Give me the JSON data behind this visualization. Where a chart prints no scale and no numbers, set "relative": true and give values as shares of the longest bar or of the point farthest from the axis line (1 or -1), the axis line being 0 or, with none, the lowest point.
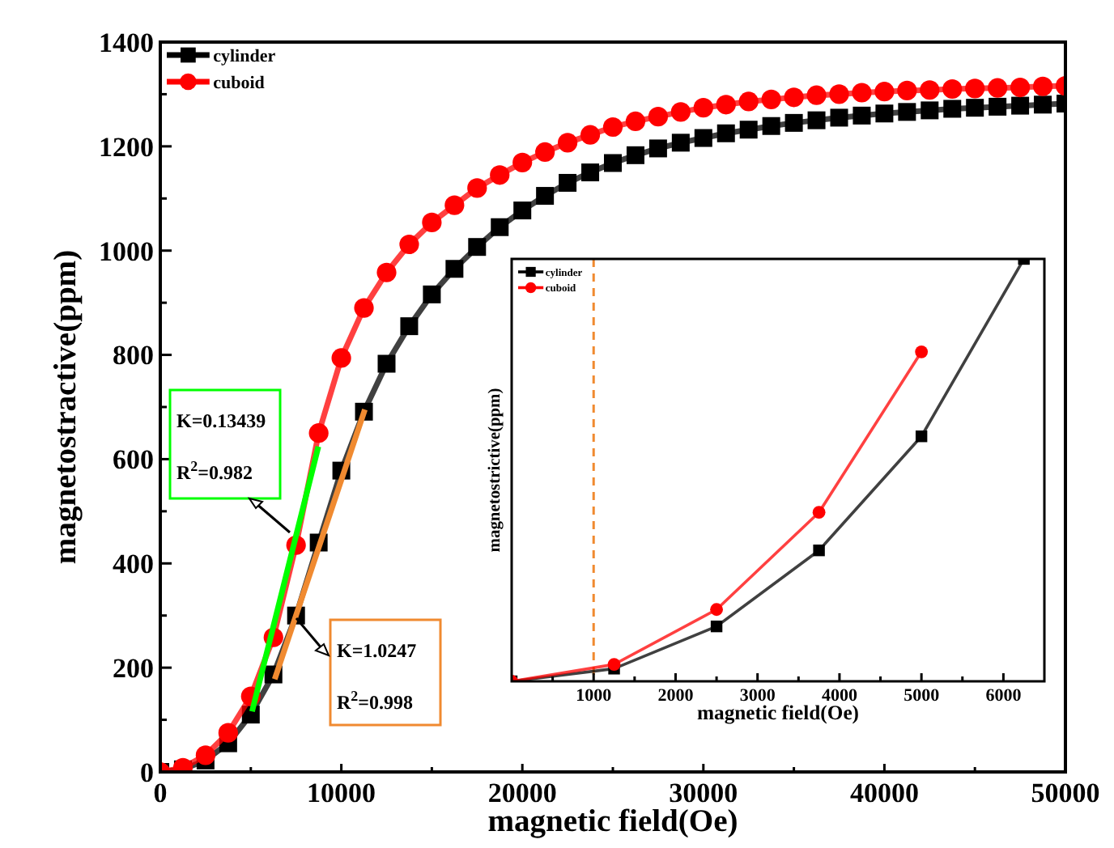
{
  "chart_data": [
    {
      "type": "line",
      "xlabel": "magnetic field(Oe)",
      "ylabel": "magnetostractive(ppm)",
      "x": [
        0,
        1250,
        2500,
        3750,
        5000,
        6250,
        7500,
        8750,
        10000,
        11250,
        12500,
        13750,
        15000,
        16250,
        17500,
        18750,
        20000,
        21250,
        22500,
        23750,
        25000,
        26250,
        27500,
        28750,
        30000,
        31250,
        32500,
        33750,
        35000,
        36250,
        37500,
        38750,
        40000,
        41250,
        42500,
        43750,
        45000,
        46250,
        47500,
        48750,
        50000
      ],
      "series": [
        {
          "name": "cylinder",
          "color": "#000000",
          "marker": "square",
          "values": [
            0,
            5,
            22,
            55,
            110,
            187,
            300,
            440,
            578,
            691,
            783,
            855,
            916,
            965,
            1007,
            1045,
            1077,
            1105,
            1130,
            1150,
            1168,
            1183,
            1196,
            1207,
            1216,
            1225,
            1232,
            1239,
            1245,
            1250,
            1255,
            1259,
            1263,
            1266,
            1269,
            1272,
            1274,
            1276,
            1278,
            1280,
            1282
          ]
        },
        {
          "name": "cuboid",
          "color": "#ff0000",
          "marker": "circle",
          "values": [
            0,
            8,
            32,
            75,
            145,
            258,
            435,
            650,
            794,
            890,
            958,
            1012,
            1054,
            1087,
            1120,
            1145,
            1169,
            1189,
            1207,
            1222,
            1237,
            1248,
            1257,
            1266,
            1274,
            1280,
            1286,
            1290,
            1294,
            1298,
            1300,
            1303,
            1305,
            1307,
            1308,
            1310,
            1311,
            1312,
            1313,
            1315,
            1316
          ]
        },
        {
          "type": "line",
          "color": "#00ff00",
          "marker": "none",
          "x": [
            5070,
            8730
          ],
          "values": [
            116,
            624
          ]
        },
        {
          "type": "line",
          "color": "#f08a30",
          "marker": "none",
          "x": [
            6320,
            11300
          ],
          "values": [
            178,
            695
          ]
        }
      ],
      "xlim": [
        0,
        50000
      ],
      "xticks": [
        0,
        {
          "value": 5000,
          "label": null
        },
        10000,
        {
          "value": 15000,
          "label": null
        },
        20000,
        {
          "value": 25000,
          "label": null
        },
        30000,
        {
          "value": 35000,
          "label": null
        },
        40000,
        {
          "value": 45000,
          "label": null
        },
        50000
      ],
      "ylim": [
        0,
        1400
      ],
      "yticks": [
        0,
        {
          "value": 100,
          "label": null
        },
        200,
        {
          "value": 300,
          "label": null
        },
        400,
        {
          "value": 500,
          "label": null
        },
        600,
        {
          "value": 700,
          "label": null
        },
        800,
        {
          "value": 900,
          "label": null
        },
        1000,
        {
          "value": 1100,
          "label": null
        },
        1200,
        {
          "value": 1300,
          "label": null
        },
        1400
      ],
      "legend": "top left",
      "grid": false,
      "annotations": [
        "K=0.13439",
        "R$^{2}$=0.982",
        "K=1.0247",
        "R$^{2}$=0.998"
      ]
    },
    {
      "type": "line",
      "relative": true,
      "xlabel": "magnetic field(Oe)",
      "ylabel": "magnetostrictive(ppm)",
      "x": [
        0,
        1250,
        2500,
        3750,
        5000,
        6250
      ],
      "series": [
        {
          "name": "cylinder",
          "color": "#000000",
          "marker": "square",
          "values": [
            0,
            0.03,
            0.13,
            0.31,
            0.58,
            1
          ]
        },
        {
          "name": "cuboid",
          "color": "#ff0000",
          "marker": "circle",
          "values": [
            0,
            0.04,
            0.17,
            0.4,
            0.78,
            null
          ]
        }
      ],
      "xlim": [
        0,
        6500
      ],
      "xticks": [
        {
          "value": 500,
          "label": null
        },
        1000,
        {
          "value": 1500,
          "label": null
        },
        2000,
        {
          "value": 2500,
          "label": null
        },
        3000,
        {
          "value": 3500,
          "label": null
        },
        4000,
        {
          "value": 4500,
          "label": null
        },
        5000,
        {
          "value": 5500,
          "label": null
        },
        6000
      ],
      "ref_lines": [
        {
          "axis": "x",
          "value": 1000,
          "color": "#f08a30",
          "line_style": "dashed"
        }
      ],
      "legend": "top left",
      "grid": false
    }
  ]
}
